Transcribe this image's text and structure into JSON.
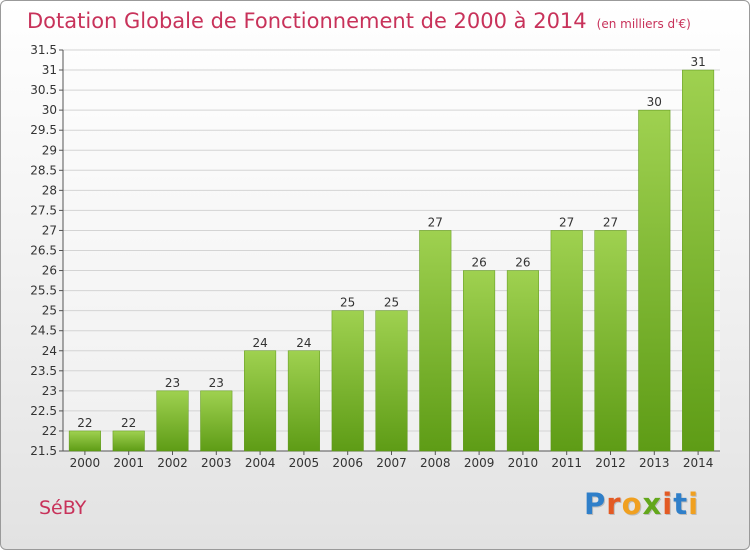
{
  "header": {
    "title": "Dotation Globale de Fonctionnement de 2000 à 2014",
    "unit": "(en milliers d'€)"
  },
  "footer": {
    "commune": "SéBY",
    "logo_letters": [
      "P",
      "r",
      "o",
      "x",
      "i",
      "t",
      "i"
    ],
    "logo_colors": [
      "#2f7fc9",
      "#e35a24",
      "#f0a020",
      "#63a71b",
      "#e35a24",
      "#2f7fc9",
      "#f0a020"
    ]
  },
  "chart_data": {
    "type": "bar",
    "title": "Dotation Globale de Fonctionnement de 2000 à 2014",
    "subtitle": "(en milliers d'€)",
    "xlabel": "",
    "ylabel": "",
    "categories": [
      "2000",
      "2001",
      "2002",
      "2003",
      "2004",
      "2005",
      "2006",
      "2007",
      "2008",
      "2009",
      "2010",
      "2011",
      "2012",
      "2013",
      "2014"
    ],
    "values": [
      22,
      22,
      23,
      23,
      24,
      24,
      25,
      25,
      27,
      26,
      26,
      27,
      27,
      30,
      31
    ],
    "data_labels": [
      "22",
      "22",
      "23",
      "23",
      "24",
      "24",
      "25",
      "25",
      "27",
      "26",
      "26",
      "27",
      "27",
      "30",
      "31"
    ],
    "ylim": [
      21.5,
      31.5
    ],
    "yticks": [
      "21.5",
      "22",
      "22.5",
      "23",
      "23.5",
      "24",
      "24.5",
      "25",
      "25.5",
      "26",
      "26.5",
      "27",
      "27.5",
      "28",
      "28.5",
      "29",
      "29.5",
      "30",
      "30.5",
      "31",
      "31.5"
    ],
    "grid": true,
    "legend": "none",
    "bar_color_top": "#9fd150",
    "bar_color_bottom": "#5e9c16"
  }
}
